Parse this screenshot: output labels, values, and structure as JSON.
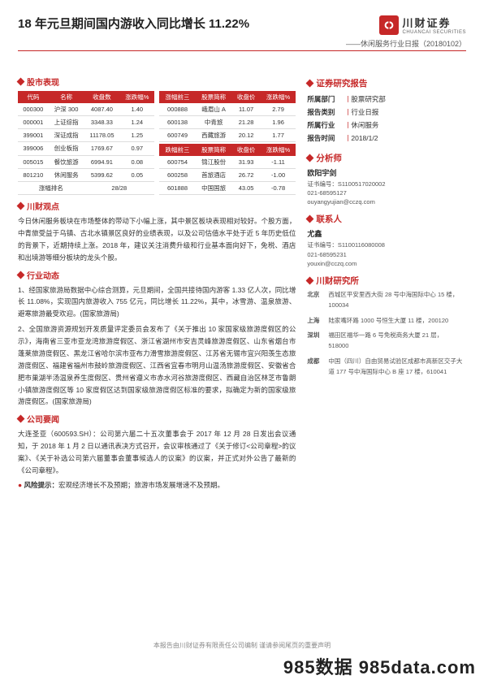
{
  "header": {
    "title": "18 年元旦期间国内游收入同比增长 11.22%",
    "subtitle": "——休闲服务行业日报（20180102）",
    "brand_name": "川财证券",
    "brand_sub": "CHUANCAI SECURITIES"
  },
  "sections": {
    "market": "股市表现",
    "view": "川财观点",
    "dynamics": "行业动态",
    "news": "公司要闻"
  },
  "market_table_left": {
    "headers": [
      "代码",
      "名称",
      "收盘数",
      "涨跌幅%"
    ],
    "rows": [
      [
        "000300",
        "沪深 300",
        "4087.40",
        "1.40"
      ],
      [
        "000001",
        "上证综指",
        "3348.33",
        "1.24"
      ],
      [
        "399001",
        "深证成指",
        "11178.05",
        "1.25"
      ],
      [
        "399006",
        "创业板指",
        "1769.67",
        "0.97"
      ],
      [
        "005015",
        "餐饮旅游",
        "6994.91",
        "0.08"
      ],
      [
        "801210",
        "休闲服务",
        "5399.62",
        "0.05"
      ]
    ],
    "rank_label": "涨幅排名",
    "rank_value": "28/28"
  },
  "market_table_right_top": {
    "headers": [
      "涨幅前三",
      "股票简称",
      "收盘价",
      "涨跌幅%"
    ],
    "rows": [
      [
        "000888",
        "峨眉山 A",
        "11.07",
        "2.79"
      ],
      [
        "600138",
        "中青旅",
        "21.28",
        "1.96"
      ],
      [
        "600749",
        "西藏旅游",
        "20.12",
        "1.77"
      ]
    ]
  },
  "market_table_right_bot": {
    "headers": [
      "跌幅前三",
      "股票简称",
      "收盘价",
      "涨跌幅%"
    ],
    "rows": [
      [
        "600754",
        "锦江股份",
        "31.93",
        "-1.11"
      ],
      [
        "600258",
        "首旅酒店",
        "26.72",
        "-1.00"
      ],
      [
        "601888",
        "中国国旅",
        "43.05",
        "-0.78"
      ]
    ]
  },
  "view_text": "今日休闲服务板块在市场整体的带动下小幅上涨，其中景区板块表现相对较好。个股方面，中青旅受益于乌镇、古北水镇景区良好的业绩表现，以及公司估值水平处于近 5 年历史低位的背景下，近期持续上涨。2018 年，建议关注消费升级和行业基本面向好下，免税、酒店和出境游等细分板块的龙头个股。",
  "dynamics_paras": [
    "1、经国家旅游局数据中心综合测算，元旦期间，全国共接待国内游客 1.33 亿人次，同比增长 11.08%，实现国内旅游收入 755 亿元，同比增长 11.22%，其中，冰雪游、温泉旅游、避寒旅游最受欢迎。(国家旅游局)",
    "2、全国旅游资源规划开发质量评定委员会发布了《关于推出 10 家国家级旅游度假区的公示》，海南省三亚市亚龙湾旅游度假区、浙江省湖州市安吉灵峰旅游度假区、山东省烟台市蓬莱旅游度假区、黑龙江省哈尔滨市亚布力滑雪旅游度假区、江苏省无锡市宜兴阳羡生态旅游度假区、福建省福州市鼓岭旅游度假区、江西省宜春市明月山温汤旅游度假区、安徽省合肥市巢湖半汤温泉养生度假区、贵州省遵义市赤水河谷旅游度假区、西藏自治区林芝市鲁朗小镇旅游度假区等 10 家度假区达到国家级旅游度假区标准的要求，拟确定为新的国家级旅游度假区。(国家旅游局)"
  ],
  "news_text": "大连圣亚（600593.SH）：公司第六届二十五次董事会于 2017 年 12 月 28 日发出会议通知，于 2018 年 1 月 2 日以通讯表决方式召开，会议审核通过了《关于修订<公司章程>的议案》、《关于补选公司第六届董事会董事候选人的议案》的议案，并正式对外公告了最新的《公司章程》。",
  "risk_label": "风险提示：",
  "risk_text": "宏观经济增长不及预期；旅游市场发展增速不及预期。",
  "aside": {
    "report_head": "证券研究报告",
    "kv": [
      {
        "k": "所属部门",
        "v": "股票研究部"
      },
      {
        "k": "报告类别",
        "v": "行业日报"
      },
      {
        "k": "所属行业",
        "v": "休闲服务"
      },
      {
        "k": "报告时间",
        "v": "2018/1/2"
      }
    ],
    "analyst_head": "分析师",
    "analyst_name": "欧阳宇剑",
    "analyst_lines": [
      "证书编号：S1100517020002",
      "021-68595127",
      "ouyangyujian@cczq.com"
    ],
    "contact_head": "联系人",
    "contact_name": "尤鑫",
    "contact_lines": [
      "证书编号：S1100116080008",
      "021-68595231",
      "youxin@cczq.com"
    ],
    "inst_head": "川财研究所",
    "offices": [
      {
        "city": "北京",
        "addr": "西城区平安里西大街 28 号中海国际中心 15 楼，100034"
      },
      {
        "city": "上海",
        "addr": "陆家嘴环路 1000 号恒生大厦 11 楼，200120"
      },
      {
        "city": "深圳",
        "addr": "福田区福华一路 6 号免税商务大厦 21 层，518000"
      },
      {
        "city": "成都",
        "addr": "中国（四川）自由贸易试验区成都市高新区交子大道 177 号中海国际中心 B 座 17 楼，610041"
      }
    ]
  },
  "footer": "本报告由川财证券有限责任公司编制  谨请参阅尾页的重要声明",
  "watermark": "985数据 985data.com",
  "colors": {
    "accent": "#c62828"
  }
}
